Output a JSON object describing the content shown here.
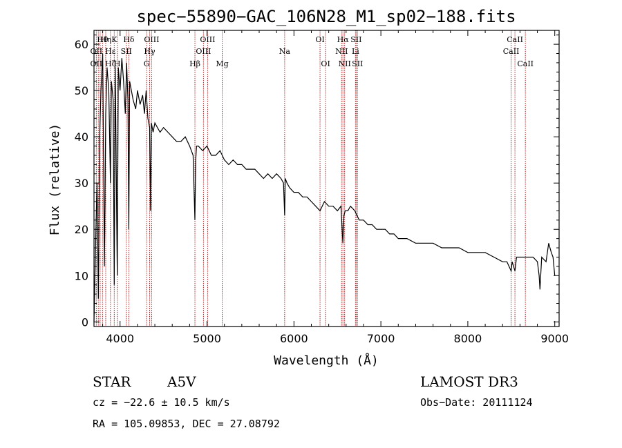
{
  "chart_data": {
    "type": "line",
    "title": "spec−55890−GAC_106N28_M1_sp02−188.fits",
    "xlabel": "Wavelength (Å)",
    "ylabel": "Flux (relative)",
    "xlim": [
      3700,
      9050
    ],
    "ylim": [
      -1,
      63
    ],
    "xticks": [
      4000,
      5000,
      6000,
      7000,
      8000,
      9000
    ],
    "yticks": [
      0,
      10,
      20,
      30,
      40,
      50,
      60
    ],
    "series": [
      {
        "name": "spectrum",
        "x": [
          3700,
          3720,
          3735,
          3750,
          3765,
          3780,
          3800,
          3820,
          3835,
          3850,
          3870,
          3889,
          3900,
          3920,
          3933,
          3945,
          3960,
          3968,
          3980,
          4000,
          4020,
          4040,
          4060,
          4075,
          4090,
          4101,
          4110,
          4130,
          4150,
          4180,
          4200,
          4230,
          4260,
          4280,
          4300,
          4320,
          4340,
          4350,
          4360,
          4380,
          4400,
          4430,
          4460,
          4500,
          4550,
          4600,
          4650,
          4700,
          4750,
          4800,
          4840,
          4861,
          4870,
          4880,
          4900,
          4950,
          5000,
          5050,
          5100,
          5150,
          5200,
          5250,
          5300,
          5350,
          5400,
          5450,
          5500,
          5550,
          5600,
          5650,
          5700,
          5750,
          5800,
          5850,
          5880,
          5893,
          5900,
          5920,
          5950,
          6000,
          6050,
          6100,
          6150,
          6200,
          6250,
          6300,
          6350,
          6400,
          6450,
          6500,
          6540,
          6563,
          6575,
          6590,
          6620,
          6650,
          6700,
          6750,
          6800,
          6850,
          6900,
          6950,
          7000,
          7050,
          7100,
          7150,
          7200,
          7300,
          7400,
          7500,
          7600,
          7700,
          7800,
          7900,
          8000,
          8100,
          8200,
          8300,
          8400,
          8450,
          8498,
          8510,
          8542,
          8560,
          8600,
          8662,
          8700,
          8750,
          8800,
          8820,
          8830,
          8850,
          8900,
          8930,
          8960,
          8980,
          9000
        ],
        "y": [
          0,
          18,
          30,
          5,
          40,
          50,
          58,
          12,
          45,
          55,
          50,
          30,
          52,
          48,
          8,
          55,
          25,
          10,
          55,
          50,
          57,
          52,
          45,
          56,
          48,
          20,
          52,
          50,
          48,
          46,
          50,
          47,
          49,
          45,
          50,
          44,
          42,
          24,
          43,
          41,
          43,
          42,
          41,
          42,
          41,
          40,
          39,
          39,
          40,
          38,
          36,
          22,
          35,
          38,
          38,
          37,
          38,
          36,
          36,
          37,
          35,
          34,
          35,
          34,
          34,
          33,
          33,
          33,
          32,
          31,
          32,
          31,
          32,
          31,
          30,
          23,
          31,
          30,
          29,
          28,
          28,
          27,
          27,
          26,
          25,
          24,
          26,
          25,
          25,
          24,
          25,
          17,
          23,
          24,
          24,
          25,
          24,
          22,
          22,
          21,
          21,
          20,
          20,
          20,
          19,
          19,
          18,
          18,
          17,
          17,
          17,
          16,
          16,
          16,
          15,
          15,
          15,
          14,
          13,
          13,
          11,
          13,
          11,
          14,
          14,
          14,
          14,
          14,
          13,
          10,
          7,
          14,
          13,
          17,
          15,
          14,
          10
        ]
      }
    ]
  },
  "line_labels": [
    {
      "text": "Hθ",
      "wl": 3798,
      "row": 1
    },
    {
      "text": "Hη",
      "wl": 3835,
      "row": 1
    },
    {
      "text": "K",
      "wl": 3933,
      "row": 1
    },
    {
      "text": "Hδ",
      "wl": 4101,
      "row": 1
    },
    {
      "text": "OIII",
      "wl": 4363,
      "row": 1
    },
    {
      "text": "OIII",
      "wl": 5007,
      "row": 1
    },
    {
      "text": "OI",
      "wl": 6300,
      "row": 1
    },
    {
      "text": "Hα",
      "wl": 6563,
      "row": 1
    },
    {
      "text": "SII",
      "wl": 6716,
      "row": 1
    },
    {
      "text": "CaII",
      "wl": 8542,
      "row": 1
    },
    {
      "text": "OII",
      "wl": 3727,
      "row": 2
    },
    {
      "text": "Hε",
      "wl": 3889,
      "row": 2
    },
    {
      "text": "SII",
      "wl": 4072,
      "row": 2
    },
    {
      "text": "Hγ",
      "wl": 4340,
      "row": 2
    },
    {
      "text": "OIII",
      "wl": 4959,
      "row": 2
    },
    {
      "text": "Na",
      "wl": 5893,
      "row": 2
    },
    {
      "text": "NII",
      "wl": 6548,
      "row": 2
    },
    {
      "text": "Li",
      "wl": 6708,
      "row": 2
    },
    {
      "text": "CaII",
      "wl": 8498,
      "row": 2
    },
    {
      "text": "OII",
      "wl": 3727,
      "row": 3
    },
    {
      "text": "Hζ",
      "wl": 3889,
      "row": 3
    },
    {
      "text": "H",
      "wl": 3968,
      "row": 3
    },
    {
      "text": "G",
      "wl": 4305,
      "row": 3
    },
    {
      "text": "Hβ",
      "wl": 4861,
      "row": 3
    },
    {
      "text": "Mg",
      "wl": 5175,
      "row": 3
    },
    {
      "text": "OI",
      "wl": 6364,
      "row": 3
    },
    {
      "text": "NII",
      "wl": 6583,
      "row": 3
    },
    {
      "text": "SII",
      "wl": 6731,
      "row": 3
    },
    {
      "text": "CaII",
      "wl": 8662,
      "row": 3
    }
  ],
  "line_marker_wls": [
    3727,
    3750,
    3771,
    3798,
    3835,
    3889,
    3933,
    3968,
    4072,
    4101,
    4305,
    4340,
    4363,
    4861,
    4959,
    5007,
    5175,
    5893,
    6300,
    6364,
    6548,
    6563,
    6583,
    6708,
    6716,
    6731,
    8498,
    8542,
    8662
  ],
  "info": {
    "object_type": "STAR",
    "subclass": "A5V",
    "survey": "LAMOST DR3",
    "redshift": "cz = −22.6 ± 10.5 km/s",
    "obs_date": "Obs−Date: 20111124",
    "coords": "RA = 105.09853, DEC =  27.08792"
  },
  "colors": {
    "marker_line": "#b22222",
    "spectrum": "#000000"
  }
}
